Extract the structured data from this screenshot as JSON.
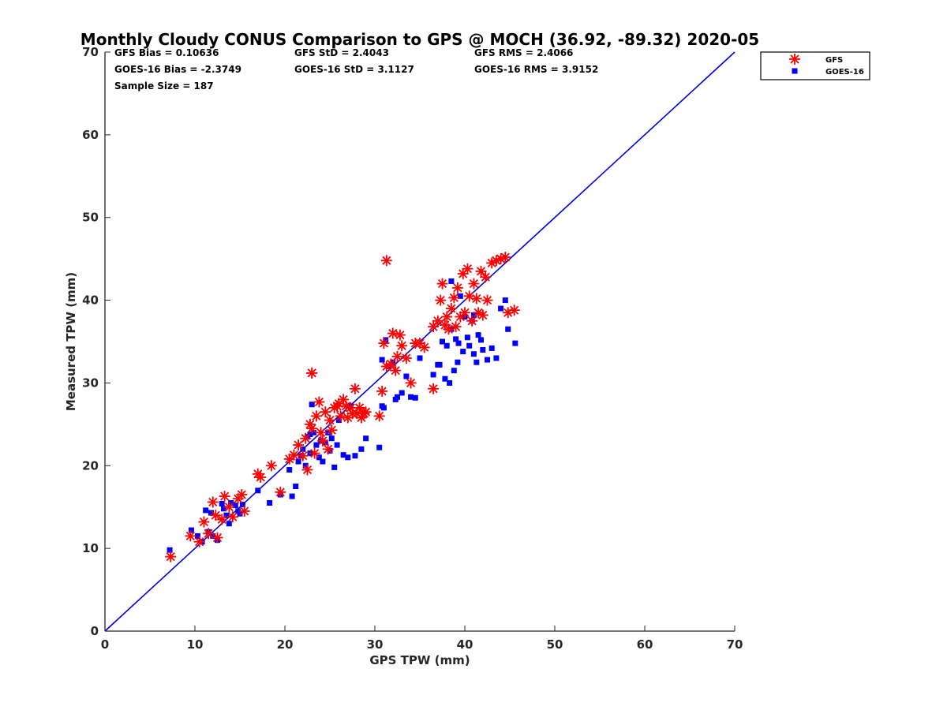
{
  "chart_data": {
    "type": "scatter",
    "title": "Monthly Cloudy CONUS Comparison to GPS @ MOCH (36.92, -89.32) 2020-05",
    "xlabel": "GPS TPW (mm)",
    "ylabel": "Measured TPW (mm)",
    "xlim": [
      0,
      70
    ],
    "ylim": [
      0,
      70
    ],
    "xticks": [
      0,
      10,
      20,
      30,
      40,
      50,
      60,
      70
    ],
    "yticks": [
      0,
      10,
      20,
      30,
      40,
      50,
      60,
      70
    ],
    "grid": false,
    "legend_position": "top-right (outside)",
    "stats": {
      "gfs_bias": "GFS Bias = 0.10636",
      "gfs_std": "GFS StD = 2.4043",
      "gfs_rms": "GFS RMS = 2.4066",
      "goes_bias": "GOES-16 Bias = -2.3749",
      "goes_std": "GOES-16 StD = 3.1127",
      "goes_rms": "GOES-16 RMS = 3.9152",
      "sample_size": "Sample Size = 187"
    },
    "reference_line": {
      "name": "1:1",
      "x": [
        0,
        70
      ],
      "y": [
        0,
        70
      ],
      "color": "#0000e0"
    },
    "series": [
      {
        "name": "GFS",
        "marker": "asterisk",
        "color": "#ff0000",
        "x": [
          7.3,
          9.5,
          10.5,
          11.0,
          11.5,
          12.0,
          12.5,
          12.3,
          13.0,
          13.3,
          13.8,
          14.2,
          14.8,
          15.2,
          15.5,
          17.0,
          17.3,
          18.5,
          19.5,
          20.5,
          21.0,
          21.5,
          22.0,
          22.3,
          22.5,
          22.8,
          23.0,
          23.0,
          23.3,
          23.5,
          23.8,
          24.0,
          24.2,
          24.5,
          24.8,
          25.0,
          25.2,
          25.5,
          25.8,
          26.0,
          26.2,
          26.5,
          26.8,
          27.0,
          27.3,
          27.5,
          27.8,
          28.0,
          28.3,
          28.5,
          28.8,
          29.0,
          30.5,
          30.8,
          31.0,
          31.3,
          31.8,
          32.0,
          32.3,
          32.5,
          32.8,
          33.0,
          33.5,
          34.0,
          34.5,
          35.0,
          35.5,
          36.5,
          37.0,
          37.3,
          37.5,
          37.8,
          38.0,
          38.2,
          38.5,
          38.8,
          39.0,
          39.2,
          39.5,
          39.8,
          40.0,
          40.3,
          40.5,
          40.8,
          41.0,
          41.3,
          41.5,
          41.8,
          42.0,
          42.3,
          42.5,
          43.0,
          43.5,
          44.0,
          44.5,
          44.8,
          45.5,
          23.0,
          31.3,
          36.5
        ],
        "y": [
          9.0,
          11.5,
          10.8,
          13.2,
          11.8,
          15.6,
          11.3,
          14.0,
          13.5,
          16.3,
          15.0,
          13.8,
          16.0,
          16.5,
          14.5,
          19.0,
          18.6,
          20.0,
          16.8,
          20.8,
          21.3,
          22.5,
          21.2,
          23.3,
          19.5,
          25.0,
          24.5,
          31.2,
          21.5,
          26.0,
          27.7,
          24.0,
          23.0,
          26.5,
          22.0,
          25.5,
          24.3,
          27.0,
          27.2,
          27.5,
          26.0,
          28.0,
          27.2,
          25.8,
          27.0,
          26.3,
          29.3,
          26.3,
          27.0,
          25.8,
          26.3,
          26.5,
          26.0,
          29.0,
          34.8,
          44.8,
          32.3,
          36.0,
          31.5,
          33.2,
          35.8,
          34.5,
          33.0,
          30.0,
          34.8,
          34.8,
          34.3,
          29.3,
          37.5,
          40.0,
          42.0,
          37.0,
          38.0,
          36.5,
          39.0,
          40.3,
          36.8,
          41.5,
          38.0,
          43.2,
          38.5,
          43.8,
          40.5,
          37.5,
          42.0,
          40.2,
          38.5,
          43.5,
          38.2,
          42.8,
          40.0,
          44.5,
          44.8,
          45.0,
          45.2,
          38.5,
          38.8,
          31.2,
          32.0,
          36.8
        ]
      },
      {
        "name": "GOES-16",
        "marker": "square",
        "color": "#0000ff",
        "x": [
          7.2,
          9.6,
          10.3,
          10.8,
          11.2,
          11.5,
          11.8,
          12.0,
          12.5,
          13.0,
          13.2,
          13.5,
          13.8,
          14.0,
          14.5,
          14.8,
          15.0,
          15.3,
          17.0,
          18.3,
          19.5,
          20.5,
          20.8,
          21.2,
          21.5,
          21.8,
          22.0,
          22.3,
          22.5,
          22.8,
          23.0,
          23.2,
          23.5,
          23.8,
          24.0,
          24.2,
          24.5,
          24.8,
          25.0,
          25.2,
          25.5,
          25.8,
          26.0,
          26.5,
          27.0,
          27.3,
          27.8,
          28.5,
          29.0,
          30.5,
          30.8,
          31.0,
          31.2,
          31.5,
          32.0,
          32.3,
          32.5,
          33.0,
          33.5,
          34.0,
          34.5,
          35.0,
          36.5,
          37.0,
          37.2,
          37.5,
          37.8,
          38.0,
          38.3,
          38.5,
          38.8,
          39.0,
          39.2,
          39.5,
          39.8,
          40.0,
          40.3,
          40.5,
          40.8,
          41.0,
          41.3,
          41.5,
          41.8,
          42.0,
          42.5,
          43.0,
          43.5,
          44.0,
          44.5,
          44.8,
          45.6,
          22.8,
          30.8,
          38.5,
          39.3,
          41.0
        ],
        "y": [
          9.8,
          12.2,
          11.5,
          10.8,
          14.6,
          12.0,
          14.3,
          11.5,
          11.0,
          15.4,
          14.8,
          14.0,
          13.0,
          15.5,
          15.2,
          14.5,
          14.2,
          15.3,
          17.0,
          15.5,
          16.5,
          19.5,
          16.3,
          17.5,
          20.5,
          21.2,
          22.0,
          20.0,
          23.5,
          21.5,
          27.4,
          24.0,
          22.5,
          21.0,
          23.0,
          20.5,
          22.8,
          24.0,
          21.8,
          23.3,
          19.8,
          22.5,
          25.5,
          21.3,
          21.0,
          27.2,
          21.2,
          22.0,
          23.3,
          22.2,
          32.8,
          27.0,
          35.2,
          32.0,
          32.5,
          28.0,
          28.3,
          28.8,
          30.8,
          28.3,
          28.2,
          33.0,
          31.0,
          32.2,
          32.2,
          35.0,
          30.5,
          34.5,
          30.0,
          36.5,
          31.5,
          35.3,
          32.5,
          40.5,
          33.8,
          38.0,
          35.5,
          34.5,
          37.5,
          33.5,
          32.5,
          35.8,
          35.2,
          34.0,
          32.8,
          34.2,
          33.0,
          39.0,
          40.0,
          36.5,
          34.8,
          23.8,
          27.2,
          42.3,
          34.8,
          38.2
        ]
      }
    ]
  }
}
